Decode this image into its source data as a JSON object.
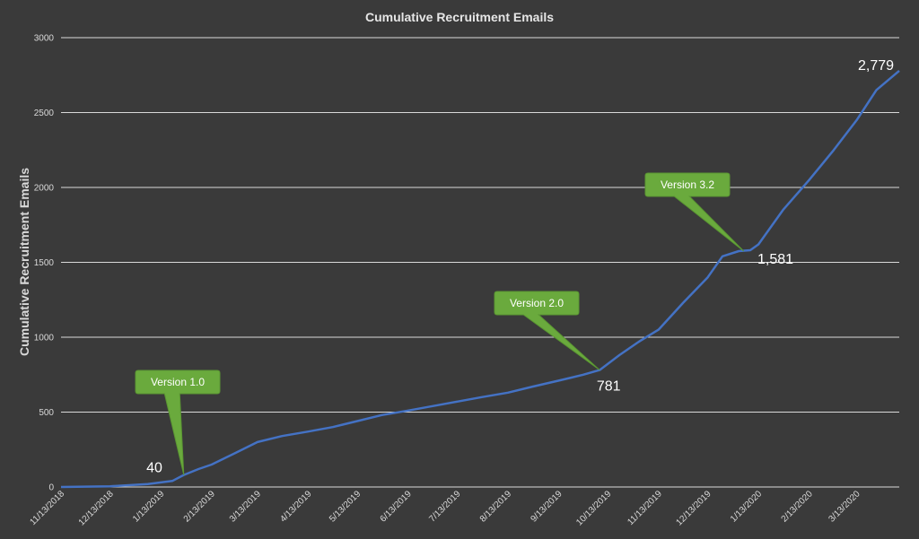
{
  "chart_data": {
    "type": "line",
    "title": "Cumulative Recruitment Emails",
    "ylabel": "Cumulative Recruitment Emails",
    "xlabel": "",
    "ylim": [
      0,
      3000
    ],
    "yticks": [
      0,
      500,
      1000,
      1500,
      2000,
      2500,
      3000
    ],
    "xlim": [
      "2018-11-13",
      "2020-04-08"
    ],
    "xtick_labels": [
      "11/13/2018",
      "12/13/2018",
      "1/13/2019",
      "2/13/2019",
      "3/13/2019",
      "4/13/2019",
      "5/13/2019",
      "6/13/2019",
      "7/13/2019",
      "8/13/2019",
      "9/13/2019",
      "10/13/2019",
      "11/13/2019",
      "12/13/2019",
      "1/13/2020",
      "2/13/2020",
      "3/13/2020"
    ],
    "grid": true,
    "line_color": "#4472c4",
    "series": [
      {
        "x": [
          "2018-11-13",
          "2018-12-13",
          "2019-01-05",
          "2019-01-20",
          "2019-01-27",
          "2019-02-05",
          "2019-02-13",
          "2019-02-28",
          "2019-03-13",
          "2019-03-28",
          "2019-04-13",
          "2019-04-28",
          "2019-05-13",
          "2019-05-28",
          "2019-06-13",
          "2019-06-28",
          "2019-07-13",
          "2019-07-28",
          "2019-08-13",
          "2019-08-28",
          "2019-09-13",
          "2019-09-28",
          "2019-10-08",
          "2019-10-20",
          "2019-11-01",
          "2019-11-13",
          "2019-11-28",
          "2019-12-13",
          "2019-12-22",
          "2020-01-01",
          "2020-01-08",
          "2020-01-13",
          "2020-01-28",
          "2020-02-13",
          "2020-02-28",
          "2020-03-13",
          "2020-03-25",
          "2020-04-08"
        ],
        "y": [
          0,
          5,
          20,
          40,
          80,
          120,
          150,
          230,
          300,
          340,
          370,
          400,
          440,
          480,
          510,
          540,
          570,
          600,
          630,
          670,
          710,
          750,
          781,
          880,
          970,
          1050,
          1230,
          1400,
          1540,
          1575,
          1581,
          1620,
          1850,
          2050,
          2250,
          2450,
          2650,
          2779
        ]
      }
    ],
    "data_labels": [
      {
        "x": "2019-01-20",
        "y": 40,
        "text": "40"
      },
      {
        "x": "2019-10-08",
        "y": 781,
        "text": "781"
      },
      {
        "x": "2020-01-08",
        "y": 1581,
        "text": "1,581"
      },
      {
        "x": "2020-04-08",
        "y": 2779,
        "text": "2,779"
      }
    ],
    "annotations": [
      {
        "text": "Version 1.0",
        "x": "2019-01-27",
        "y": 80
      },
      {
        "text": "Version 2.0",
        "x": "2019-10-08",
        "y": 781
      },
      {
        "text": "Version 3.2",
        "x": "2020-01-04",
        "y": 1575
      }
    ]
  }
}
